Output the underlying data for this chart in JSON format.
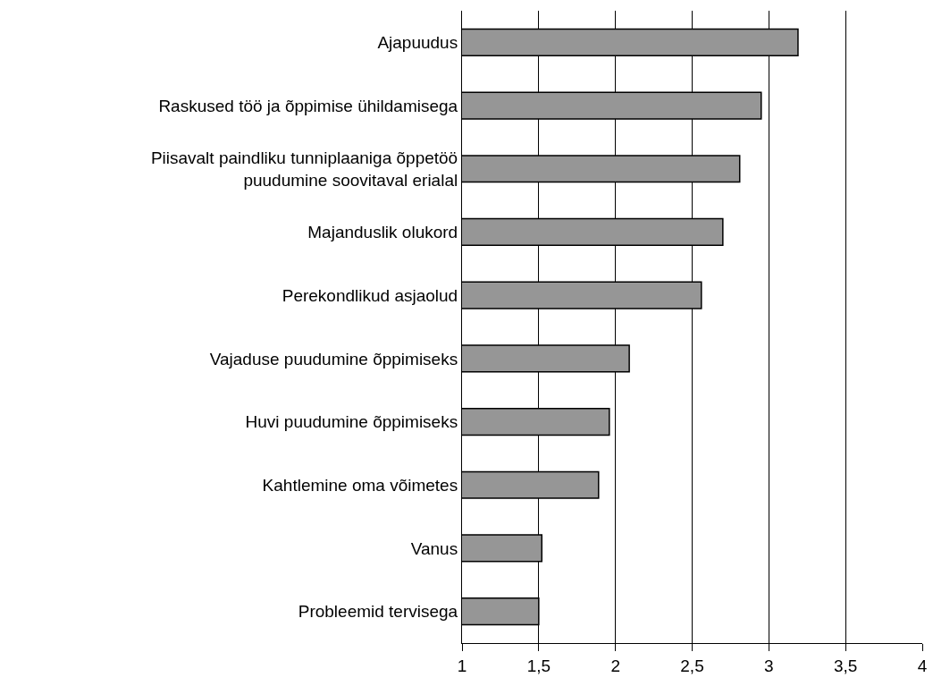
{
  "chart_data": {
    "type": "bar",
    "orientation": "horizontal",
    "categories": [
      "Ajapuudus",
      "Raskused töö ja õppimise ühildamisega",
      "Piisavalt paindliku tunniplaaniga õppetöö\npuudumine soovitaval erialal",
      "Majanduslik olukord",
      "Perekondlikud asjaolud",
      "Vajaduse puudumine õppimiseks",
      "Huvi puudumine õppimiseks",
      "Kahtlemine oma võimetes",
      "Vanus",
      "Probleemid tervisega"
    ],
    "values": [
      3.19,
      2.95,
      2.81,
      2.7,
      2.56,
      2.09,
      1.96,
      1.89,
      1.52,
      1.5
    ],
    "color": "#969696",
    "xlim": [
      1,
      4
    ],
    "xticks": [
      1,
      {
        "value": 1.5,
        "label": "1,5"
      },
      2,
      {
        "value": 2.5,
        "label": "2,5"
      },
      3,
      {
        "value": 3.5,
        "label": "3,5"
      },
      4
    ],
    "grid": "x"
  }
}
